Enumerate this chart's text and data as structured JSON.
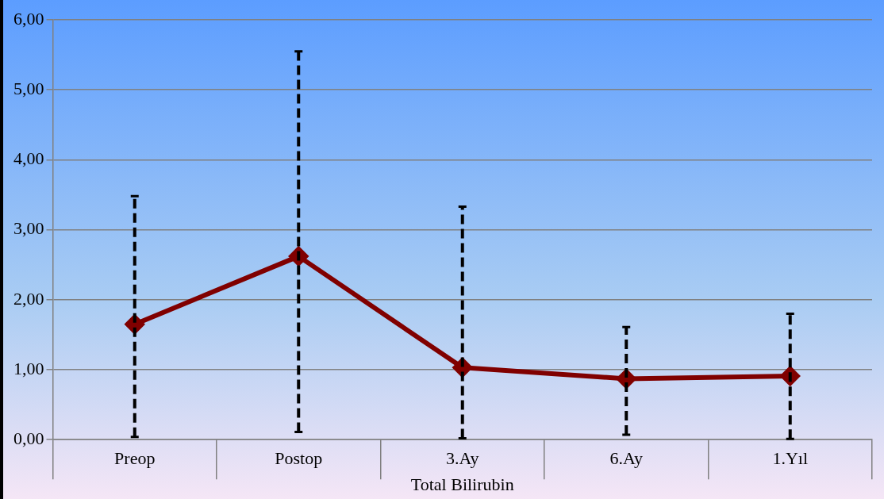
{
  "chart_data": {
    "type": "line",
    "xlabel": "Total Bilirubin",
    "categories": [
      "Preop",
      "Postop",
      "3.Ay",
      "6.Ay",
      "1.Yıl"
    ],
    "series": [
      {
        "color": "#800000",
        "values": [
          1.65,
          2.62,
          1.03,
          0.87,
          0.91
        ],
        "errors": [
          [
            0.04,
            3.48
          ],
          [
            0.11,
            5.55
          ],
          [
            0.02,
            3.33
          ],
          [
            0.07,
            1.61
          ],
          [
            0.01,
            1.8
          ]
        ]
      }
    ],
    "ylim": [
      0,
      6
    ],
    "yticks": [
      {
        "value": 0,
        "label": "0,00"
      },
      {
        "value": 1,
        "label": "1,00"
      },
      {
        "value": 2,
        "label": "2,00"
      },
      {
        "value": 3,
        "label": "3,00"
      },
      {
        "value": 4,
        "label": "4,00"
      },
      {
        "value": 5,
        "label": "5,00"
      },
      {
        "value": 6,
        "label": "6,00"
      }
    ],
    "grid": "y",
    "legend": false,
    "marker": "diamond",
    "line_style": "solid"
  }
}
